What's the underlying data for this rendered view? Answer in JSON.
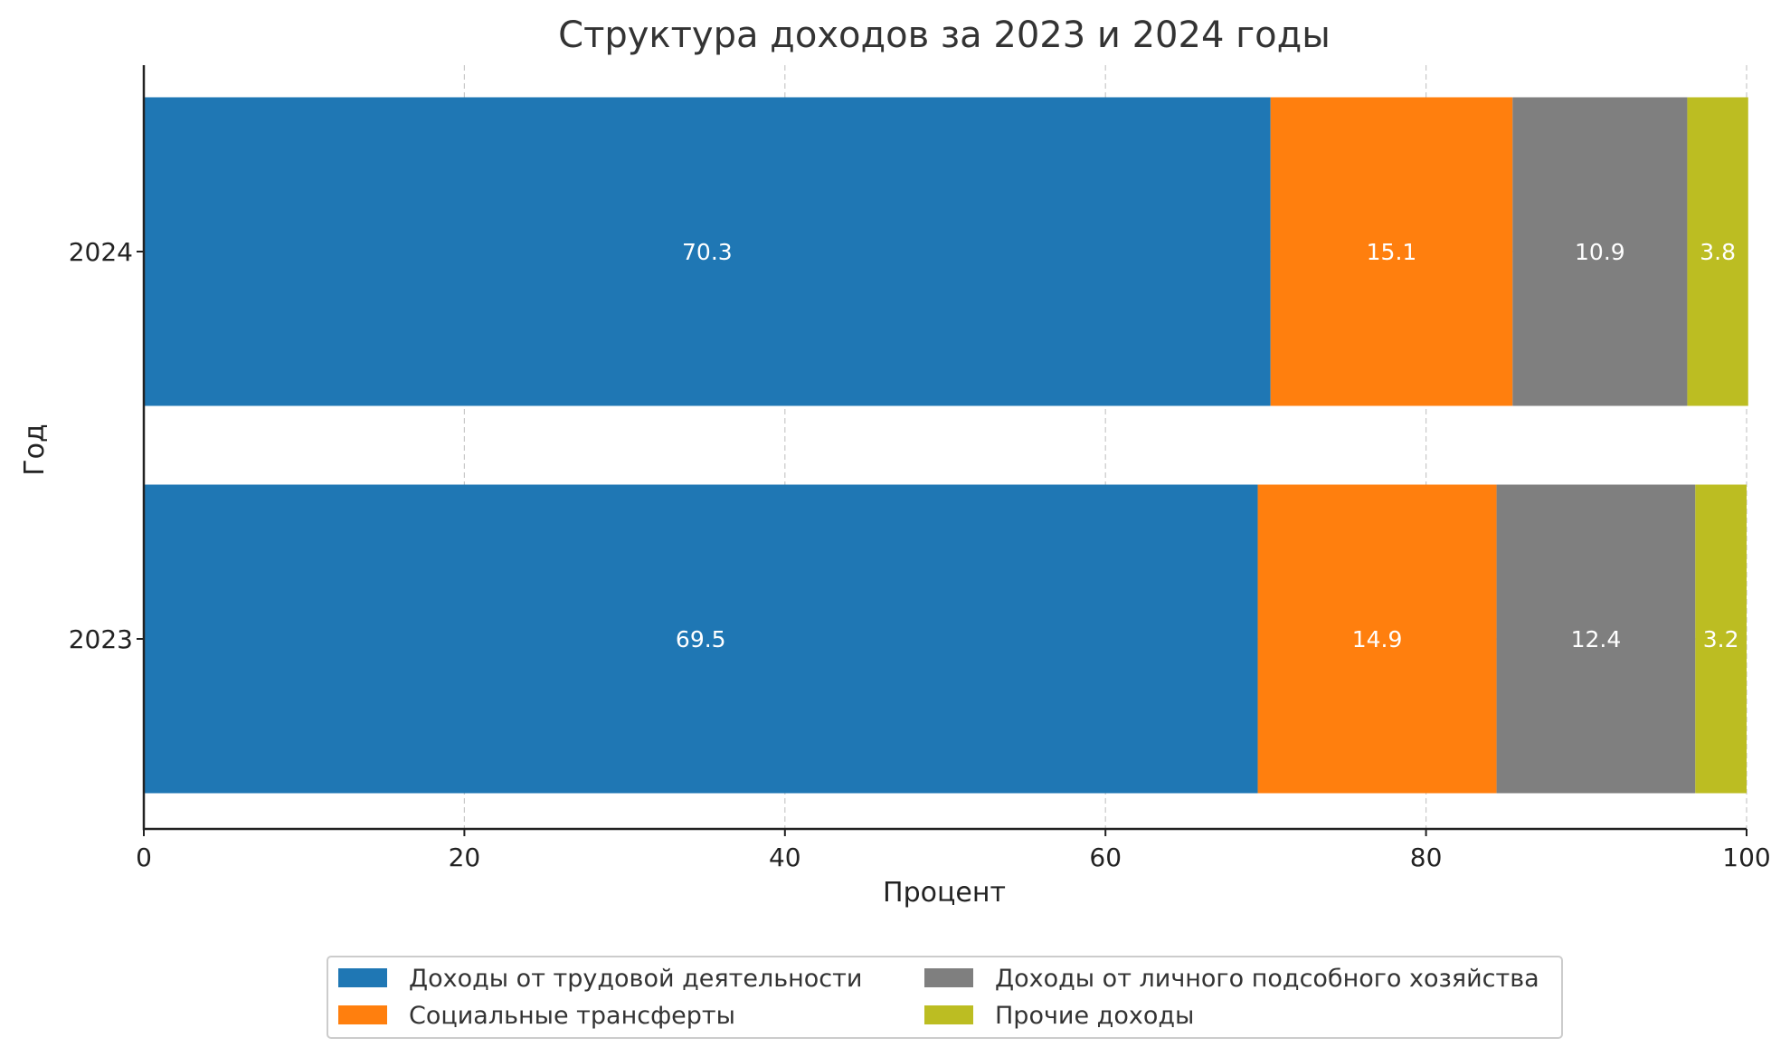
{
  "chart_data": {
    "type": "bar",
    "orientation": "horizontal",
    "stacked": true,
    "title": "Структура доходов за 2023 и 2024 годы",
    "xlabel": "Процент",
    "ylabel": "Год",
    "xlim": [
      0,
      100
    ],
    "xticks": [
      0,
      20,
      40,
      60,
      80,
      100
    ],
    "categories": [
      "2023",
      "2024"
    ],
    "series": [
      {
        "name": "Доходы от трудовой деятельности",
        "color": "#1f77b4",
        "values": [
          69.5,
          70.3
        ]
      },
      {
        "name": "Социальные трансферты",
        "color": "#ff7f0e",
        "values": [
          14.9,
          15.1
        ]
      },
      {
        "name": "Доходы от личного подсобного хозяйства",
        "color": "#7f7f7f",
        "values": [
          12.4,
          10.9
        ]
      },
      {
        "name": "Прочие доходы",
        "color": "#bcbd22",
        "values": [
          3.2,
          3.8
        ]
      }
    ],
    "grid": true,
    "legend_position": "bottom-center"
  }
}
